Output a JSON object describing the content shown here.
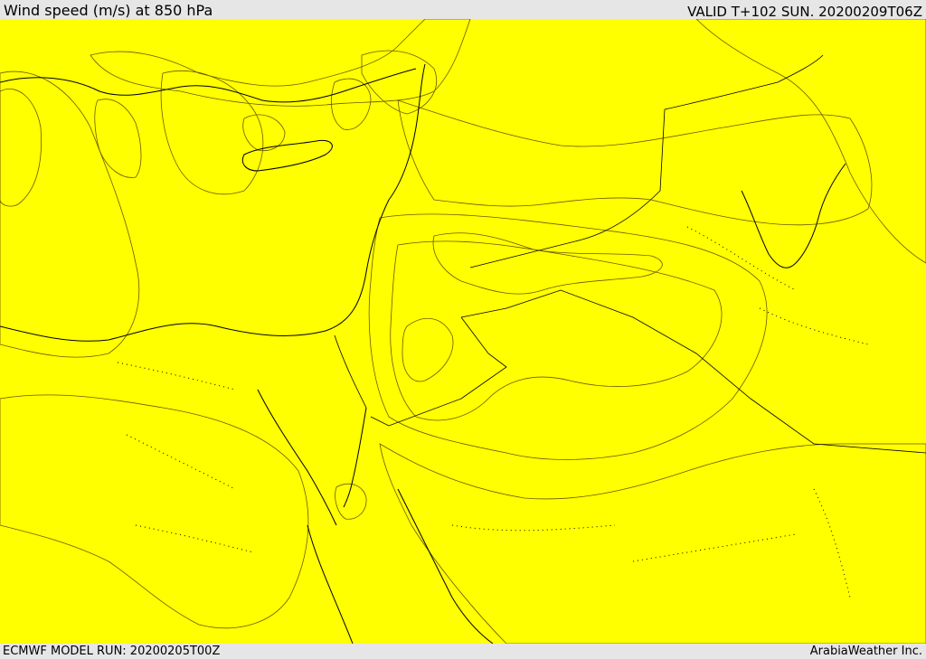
{
  "header": {
    "title": "Wind speed (m/s) at 850 hPa",
    "valid": "VALID T+102 SUN. 20200209T06Z"
  },
  "footer": {
    "model_run": "ECMWF MODEL RUN: 20200205T00Z",
    "credit": "ArabiaWeather Inc."
  },
  "colors": {
    "calm": "#ffffff",
    "light": "#fde0aa",
    "yellow": "#ffff00",
    "gold": "#ffd700",
    "orange_light": "#ffb800",
    "orange": "#ff9a00",
    "orange_dark": "#f07a10"
  }
}
